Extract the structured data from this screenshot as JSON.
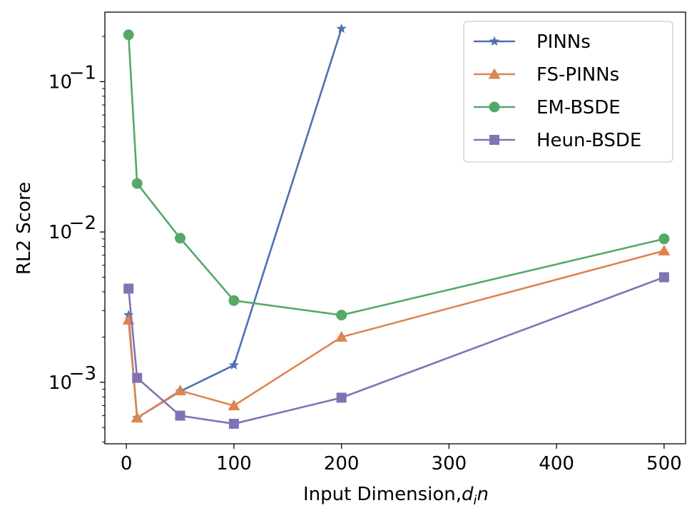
{
  "chart_data": {
    "type": "line",
    "title": "",
    "xlabel": "Input Dimension,",
    "xlabel_math_base": "d",
    "xlabel_math_sub": "i",
    "xlabel_math_tail": "n",
    "ylabel": "RL2 Score",
    "xscale": "linear",
    "yscale": "log",
    "xlim": [
      -20,
      520
    ],
    "ylim": [
      0.00039,
      0.29
    ],
    "xticks": [
      0,
      100,
      200,
      300,
      400,
      500
    ],
    "xtick_labels": [
      "0",
      "100",
      "200",
      "300",
      "400",
      "500"
    ],
    "yticks": [
      0.001,
      0.01,
      0.1
    ],
    "ytick_labels": [
      {
        "base": "10",
        "exp": "−3"
      },
      {
        "base": "10",
        "exp": "−2"
      },
      {
        "base": "10",
        "exp": "−1"
      }
    ],
    "legend_position": "top-right",
    "series": [
      {
        "name": "PINNs",
        "color": "#4C72B0",
        "marker": "star",
        "x": [
          2,
          10,
          50,
          100,
          200
        ],
        "y": [
          0.0028,
          0.00058,
          0.00087,
          0.0013,
          0.225
        ]
      },
      {
        "name": "FS-PINNs",
        "color": "#DD8452",
        "marker": "triangle",
        "x": [
          2,
          10,
          50,
          100,
          200,
          500
        ],
        "y": [
          0.0026,
          0.00058,
          0.00088,
          0.0007,
          0.002,
          0.0075
        ]
      },
      {
        "name": "EM-BSDE",
        "color": "#55A868",
        "marker": "circle",
        "x": [
          2,
          10,
          50,
          100,
          200,
          500
        ],
        "y": [
          0.205,
          0.021,
          0.0091,
          0.0035,
          0.0028,
          0.009
        ]
      },
      {
        "name": "Heun-BSDE",
        "color": "#8172B3",
        "marker": "square",
        "x": [
          2,
          10,
          50,
          100,
          200,
          500
        ],
        "y": [
          0.0042,
          0.00107,
          0.0006,
          0.00053,
          0.00079,
          0.005
        ]
      }
    ]
  }
}
